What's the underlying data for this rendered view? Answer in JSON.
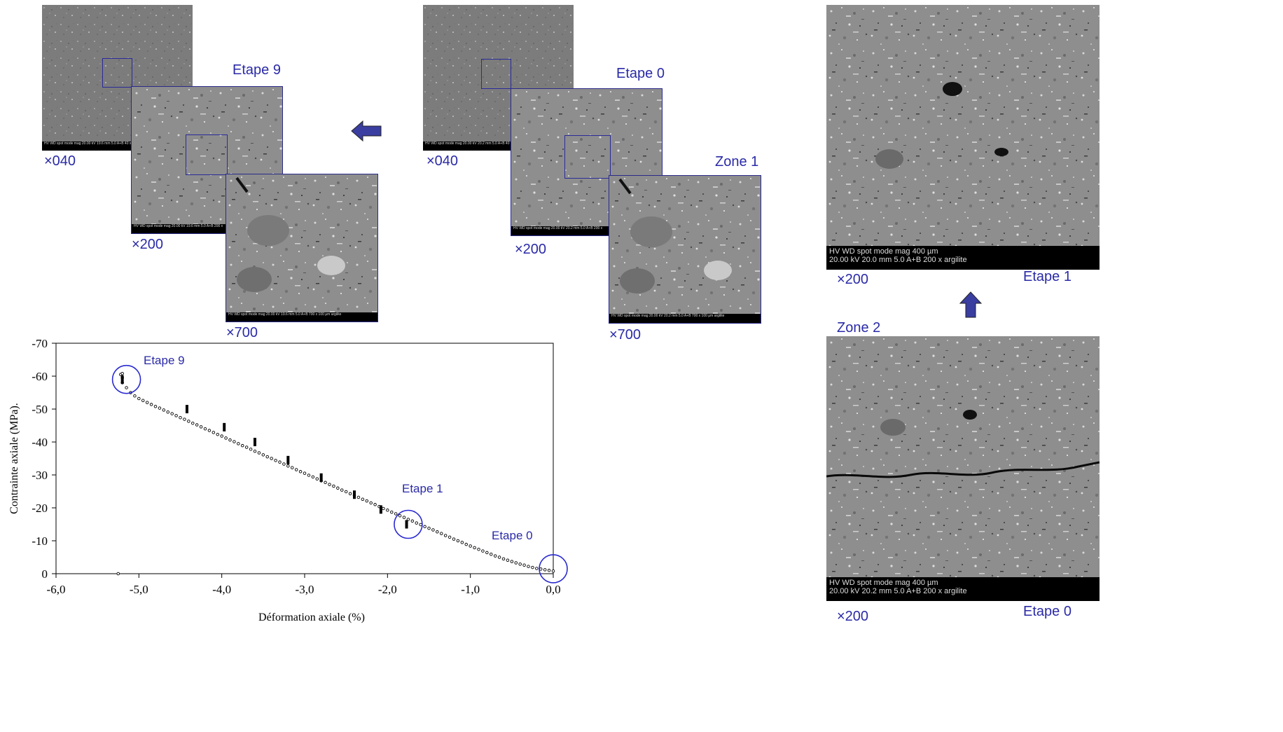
{
  "panels": {
    "left_set": {
      "etape_label": "Etape 9",
      "mag1": "×040",
      "mag2": "×200",
      "mag3": "×700",
      "bar1": "HV  WD  spot mode mag  20.00 kV 19.6 mm 5.0  A+B 40 x",
      "bar2": "HV  WD  spot mode mag  20.00 kV 19.6 mm 5.0  A+B 200 x",
      "bar3": "HV  WD  spot mode mag  20.00 kV 19.6 mm 5.0  A+B 700 x   100 µm  argilite"
    },
    "middle_set": {
      "etape_label": "Etape 0",
      "zone_label": "Zone 1",
      "mag1": "×040",
      "mag2": "×200",
      "mag3": "×700",
      "bar1": "HV  WD  spot mode mag  20.00 kV 20.2 mm 5.0  A+B 40 x",
      "bar2": "HV  WD  spot mode mag  20.00 kV 20.2 mm 5.0  A+B 200 x",
      "bar3": "HV  WD  spot mode mag  20.00 kV 20.2 mm 5.0  A+B 700 x   100 µm  argilite"
    },
    "right_set": {
      "top_mag": "×200",
      "top_label": "Etape 1",
      "zone_label": "Zone 2",
      "bottom_mag": "×200",
      "bottom_label": "Etape 0",
      "top_bar_line1": "HV     WD    spot mode mag                    400 µm",
      "top_bar_line2": "20.00 kV 20.0 mm  5.0  A+B 200 x               argilite",
      "bottom_bar_line1": "HV     WD    spot mode mag                    400 µm",
      "bottom_bar_line2": "20.00 kV 20.2 mm  5.0  A+B 200 x               argilite"
    },
    "arrow_color": "#3a3ea0"
  },
  "chart_data": {
    "type": "scatter",
    "xlabel": "Déformation axiale (%)",
    "ylabel": "Contrainte axiale (MPa).",
    "xlim": [
      -6.0,
      0.0
    ],
    "ylim": [
      0,
      -70
    ],
    "x_ticks": [
      "-6,0",
      "-5,0",
      "-4,0",
      "-3,0",
      "-2,0",
      "-1,0",
      "0,0"
    ],
    "y_ticks": [
      "-70",
      "-60",
      "-50",
      "-40",
      "-30",
      "-20",
      "-10",
      "0"
    ],
    "annotations": [
      {
        "text": "Etape 9",
        "x": -5.15,
        "y": -59
      },
      {
        "text": "Etape 1",
        "x": -1.75,
        "y": -15
      },
      {
        "text": "Etape 0",
        "x": 0.0,
        "y": -1.5
      }
    ],
    "series": [
      {
        "points": [
          [
            0.0,
            -0.8
          ],
          [
            -0.05,
            -1.0
          ],
          [
            -0.1,
            -1.2
          ],
          [
            -0.15,
            -1.4
          ],
          [
            -0.2,
            -1.6
          ],
          [
            -0.25,
            -1.9
          ],
          [
            -0.3,
            -2.2
          ],
          [
            -0.35,
            -2.6
          ],
          [
            -0.4,
            -2.9
          ],
          [
            -0.45,
            -3.3
          ],
          [
            -0.5,
            -3.7
          ],
          [
            -0.55,
            -4.1
          ],
          [
            -0.6,
            -4.5
          ],
          [
            -0.65,
            -5.0
          ],
          [
            -0.7,
            -5.4
          ],
          [
            -0.75,
            -5.9
          ],
          [
            -0.8,
            -6.4
          ],
          [
            -0.85,
            -6.9
          ],
          [
            -0.9,
            -7.4
          ],
          [
            -0.95,
            -7.9
          ],
          [
            -1.0,
            -8.4
          ],
          [
            -1.05,
            -8.9
          ],
          [
            -1.1,
            -9.5
          ],
          [
            -1.15,
            -10.0
          ],
          [
            -1.2,
            -10.5
          ],
          [
            -1.25,
            -11.1
          ],
          [
            -1.3,
            -11.6
          ],
          [
            -1.35,
            -12.2
          ],
          [
            -1.4,
            -12.7
          ],
          [
            -1.45,
            -13.3
          ],
          [
            -1.5,
            -13.8
          ],
          [
            -1.55,
            -14.3
          ],
          [
            -1.6,
            -14.9
          ],
          [
            -1.65,
            -15.4
          ],
          [
            -1.7,
            -16.0
          ],
          [
            -1.75,
            -16.5
          ],
          [
            -1.8,
            -17.1
          ],
          [
            -1.85,
            -17.6
          ],
          [
            -1.9,
            -18.2
          ],
          [
            -1.95,
            -18.7
          ],
          [
            -2.0,
            -19.3
          ],
          [
            -2.05,
            -19.8
          ],
          [
            -2.1,
            -20.4
          ],
          [
            -2.15,
            -21.0
          ],
          [
            -2.2,
            -21.5
          ],
          [
            -2.25,
            -22.1
          ],
          [
            -2.3,
            -22.6
          ],
          [
            -2.35,
            -23.2
          ],
          [
            -2.4,
            -23.8
          ],
          [
            -2.45,
            -24.3
          ],
          [
            -2.5,
            -24.9
          ],
          [
            -2.55,
            -25.4
          ],
          [
            -2.6,
            -26.0
          ],
          [
            -2.65,
            -26.6
          ],
          [
            -2.7,
            -27.1
          ],
          [
            -2.75,
            -27.7
          ],
          [
            -2.8,
            -28.2
          ],
          [
            -2.85,
            -28.8
          ],
          [
            -2.9,
            -29.4
          ],
          [
            -2.95,
            -29.9
          ],
          [
            -3.0,
            -30.5
          ],
          [
            -3.05,
            -31.0
          ],
          [
            -3.1,
            -31.6
          ],
          [
            -3.15,
            -32.2
          ],
          [
            -3.2,
            -32.7
          ],
          [
            -3.25,
            -33.3
          ],
          [
            -3.3,
            -33.9
          ],
          [
            -3.35,
            -34.4
          ],
          [
            -3.4,
            -35.0
          ],
          [
            -3.45,
            -35.5
          ],
          [
            -3.5,
            -36.1
          ],
          [
            -3.55,
            -36.7
          ],
          [
            -3.6,
            -37.2
          ],
          [
            -3.65,
            -37.8
          ],
          [
            -3.7,
            -38.4
          ],
          [
            -3.75,
            -38.9
          ],
          [
            -3.8,
            -39.5
          ],
          [
            -3.85,
            -40.1
          ],
          [
            -3.9,
            -40.6
          ],
          [
            -3.95,
            -41.2
          ],
          [
            -4.0,
            -41.8
          ],
          [
            -4.05,
            -42.3
          ],
          [
            -4.1,
            -42.9
          ],
          [
            -4.15,
            -43.5
          ],
          [
            -4.2,
            -44.0
          ],
          [
            -4.25,
            -44.6
          ],
          [
            -4.3,
            -45.2
          ],
          [
            -4.35,
            -45.7
          ],
          [
            -4.4,
            -46.3
          ],
          [
            -4.45,
            -46.9
          ],
          [
            -4.5,
            -47.4
          ],
          [
            -4.55,
            -48.0
          ],
          [
            -4.6,
            -48.6
          ],
          [
            -4.65,
            -49.1
          ],
          [
            -4.7,
            -49.7
          ],
          [
            -4.75,
            -50.3
          ],
          [
            -4.8,
            -50.8
          ],
          [
            -4.85,
            -51.4
          ],
          [
            -4.9,
            -52.0
          ],
          [
            -4.95,
            -52.6
          ],
          [
            -5.0,
            -53.2
          ],
          [
            -5.05,
            -54.0
          ],
          [
            -5.1,
            -55.0
          ],
          [
            -5.15,
            -56.5
          ],
          [
            -5.2,
            -58.0
          ],
          [
            -5.2,
            -59.5
          ],
          [
            -5.22,
            -60.5
          ],
          [
            -5.2,
            -60.8
          ],
          [
            -5.25,
            0.0
          ]
        ]
      }
    ],
    "relaxation_markers": [
      [
        -5.2,
        -59
      ],
      [
        -4.42,
        -50
      ],
      [
        -3.97,
        -44.5
      ],
      [
        -3.6,
        -40
      ],
      [
        -3.2,
        -34.5
      ],
      [
        -2.8,
        -29.2
      ],
      [
        -2.4,
        -24
      ],
      [
        -2.08,
        -19.5
      ],
      [
        -1.77,
        -15
      ]
    ]
  }
}
